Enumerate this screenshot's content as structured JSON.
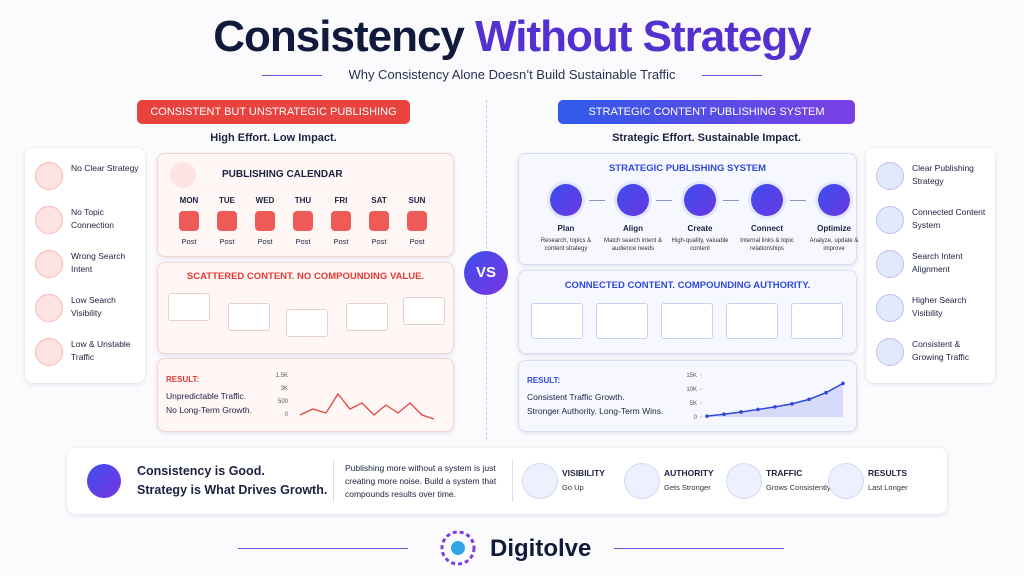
{
  "header": {
    "title_part1": "Consistency",
    "title_part2": "Without Strategy",
    "subtitle": "Why Consistency Alone Doesn’t Build Sustainable Traffic"
  },
  "left": {
    "badge": "CONSISTENT BUT UNSTRATEGIC PUBLISHING",
    "tagline": "High Effort. Low Impact.",
    "problems": [
      "No Clear Strategy",
      "No Topic Connection",
      "Wrong Search Intent",
      "Low Search Visibility",
      "Low & Unstable Traffic"
    ],
    "calendar": {
      "title": "PUBLISHING CALENDAR",
      "days": [
        {
          "day": "MON",
          "label": "Post"
        },
        {
          "day": "TUE",
          "label": "Post"
        },
        {
          "day": "WED",
          "label": "Post"
        },
        {
          "day": "THU",
          "label": "Post"
        },
        {
          "day": "FRI",
          "label": "Post"
        },
        {
          "day": "SAT",
          "label": "Post"
        },
        {
          "day": "SUN",
          "label": "Post"
        }
      ]
    },
    "scattered": {
      "title": "SCATTERED CONTENT. NO COMPOUNDING VALUE."
    },
    "result": {
      "label": "RESULT:",
      "lines": [
        "Unpredictable Traffic.",
        "No Long-Term Growth."
      ],
      "axis_labels": [
        "1.5K",
        "3K",
        "500",
        "0"
      ]
    }
  },
  "vs": "VS",
  "right": {
    "badge": "STRATEGIC CONTENT PUBLISHING SYSTEM",
    "tagline": "Strategic Effort. Sustainable Impact.",
    "system": {
      "title": "STRATEGIC PUBLISHING SYSTEM",
      "steps": [
        {
          "name": "Plan",
          "desc": "Research, topics & content strategy"
        },
        {
          "name": "Align",
          "desc": "Match search intent & audience needs"
        },
        {
          "name": "Create",
          "desc": "High-quality, valuable content"
        },
        {
          "name": "Connect",
          "desc": "Internal links & topic relationships"
        },
        {
          "name": "Optimize",
          "desc": "Analyze, update & improve"
        }
      ]
    },
    "connected": {
      "title": "CONNECTED CONTENT. COMPOUNDING AUTHORITY."
    },
    "result": {
      "label": "RESULT:",
      "lines": [
        "Consistent Traffic Growth.",
        "Stronger Authority. Long-Term Wins."
      ],
      "chart": {
        "type": "line",
        "ylim": [
          0,
          15000
        ],
        "yticks": [
          0,
          {
            "value": 5000,
            "label": "5K"
          },
          {
            "value": 10000,
            "label": "10K"
          },
          {
            "value": 15000,
            "label": "15K"
          }
        ],
        "values": [
          300,
          1000,
          1800,
          2700,
          3600,
          4700,
          6300,
          8700,
          12000
        ]
      }
    },
    "benefits": [
      "Clear Publishing Strategy",
      "Connected Content System",
      "Search Intent Alignment",
      "Higher Search Visibility",
      "Consistent & Growing Traffic"
    ]
  },
  "footer": {
    "headline": [
      "Consistency is Good.",
      "Strategy is What Drives Growth."
    ],
    "note": "Publishing more without a system is just creating more noise. Build a system that compounds results over time.",
    "outcomes": [
      {
        "title": "VISIBILITY",
        "desc": "Go Up"
      },
      {
        "title": "AUTHORITY",
        "desc": "Gets Stronger"
      },
      {
        "title": "TRAFFIC",
        "desc": "Grows Consistently"
      },
      {
        "title": "RESULTS",
        "desc": "Last Longer"
      }
    ]
  },
  "brand": "Digitolve"
}
